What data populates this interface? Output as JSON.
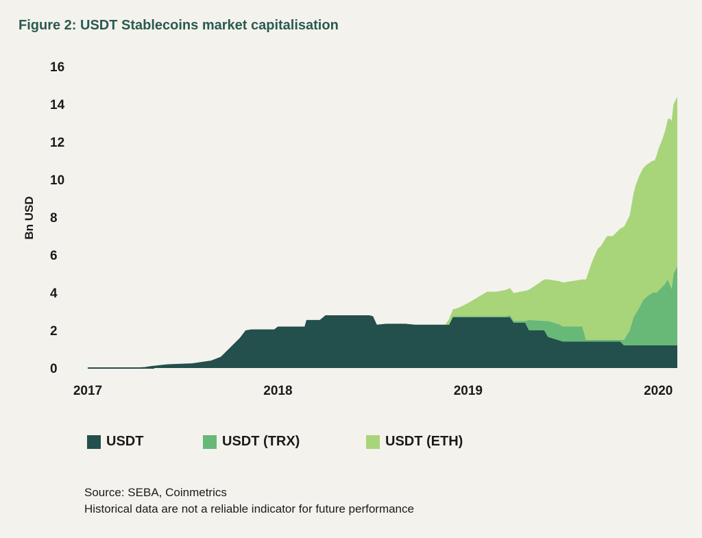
{
  "title": "Figure 2: USDT Stablecoins market capitalisation",
  "source_line1": "Source: SEBA, Coinmetrics",
  "source_line2": "Historical data are not a reliable indicator for future performance",
  "chart_data": {
    "type": "area",
    "stacked": true,
    "title": "Figure 2: USDT Stablecoins market capitalisation",
    "xlabel": "",
    "ylabel": "Bn USD",
    "ylim": [
      0,
      16
    ],
    "xlim": [
      2017.0,
      2020.1
    ],
    "yticks": [
      0,
      2,
      4,
      6,
      8,
      10,
      12,
      14,
      16
    ],
    "xticks": [
      "2017",
      "2018",
      "2019",
      "2020"
    ],
    "xtick_values": [
      2017.0,
      2018.0,
      2019.0,
      2020.0
    ],
    "grid": false,
    "legend_position": "bottom",
    "series": [
      {
        "name": "USDT",
        "color": "#234f4c",
        "x": [
          2017.0,
          2017.2,
          2017.3,
          2017.33,
          2017.42,
          2017.55,
          2017.65,
          2017.7,
          2017.73,
          2017.77,
          2017.8,
          2017.83,
          2017.86,
          2017.89,
          2017.98,
          2018.0,
          2018.14,
          2018.15,
          2018.22,
          2018.25,
          2018.48,
          2018.5,
          2018.52,
          2018.57,
          2018.67,
          2018.72,
          2018.9,
          2018.92,
          2019.22,
          2019.24,
          2019.3,
          2019.32,
          2019.4,
          2019.42,
          2019.5,
          2019.8,
          2019.82,
          2019.9,
          2020.1
        ],
        "values": [
          0.0,
          0.0,
          0.05,
          0.1,
          0.2,
          0.25,
          0.4,
          0.6,
          0.9,
          1.3,
          1.6,
          2.0,
          2.05,
          2.05,
          2.05,
          2.2,
          2.2,
          2.55,
          2.55,
          2.8,
          2.8,
          2.75,
          2.3,
          2.35,
          2.35,
          2.3,
          2.3,
          2.7,
          2.7,
          2.4,
          2.4,
          2.0,
          2.0,
          1.65,
          1.4,
          1.4,
          1.2,
          1.2,
          1.2
        ]
      },
      {
        "name": "USDT (TRX)",
        "color": "#68b878",
        "x": [
          2017.0,
          2018.9,
          2018.92,
          2019.2,
          2019.22,
          2019.3,
          2019.32,
          2019.4,
          2019.42,
          2019.48,
          2019.5,
          2019.6,
          2019.62,
          2019.8,
          2019.82,
          2019.85,
          2019.87,
          2019.9,
          2019.92,
          2019.94,
          2019.97,
          2019.99,
          2020.01,
          2020.03,
          2020.05,
          2020.07,
          2020.08,
          2020.1
        ],
        "values": [
          0.0,
          0.0,
          0.05,
          0.05,
          0.1,
          0.1,
          0.55,
          0.5,
          0.85,
          0.85,
          0.8,
          0.8,
          0.1,
          0.1,
          0.3,
          0.8,
          1.5,
          2.0,
          2.4,
          2.6,
          2.8,
          2.8,
          3.0,
          3.2,
          3.5,
          3.0,
          3.8,
          4.2
        ]
      },
      {
        "name": "USDT (ETH)",
        "color": "#a8d47a",
        "x": [
          2017.0,
          2018.88,
          2018.9,
          2018.95,
          2019.0,
          2019.05,
          2019.1,
          2019.15,
          2019.2,
          2019.3,
          2019.32,
          2019.4,
          2019.42,
          2019.6,
          2019.62,
          2019.65,
          2019.68,
          2019.7,
          2019.73,
          2019.76,
          2019.8,
          2019.82,
          2019.85,
          2019.88,
          2019.9,
          2019.95,
          2019.98,
          2020.0,
          2020.02,
          2020.04,
          2020.06,
          2020.08,
          2020.1
        ],
        "values": [
          0.0,
          0.0,
          0.3,
          0.45,
          0.7,
          1.0,
          1.3,
          1.3,
          1.4,
          1.6,
          1.6,
          2.2,
          2.2,
          2.5,
          3.2,
          4.1,
          4.8,
          5.0,
          5.5,
          5.5,
          5.9,
          6.0,
          6.1,
          6.8,
          7.0,
          7.0,
          7.0,
          7.5,
          7.8,
          8.2,
          8.8,
          9.0,
          9.0
        ]
      }
    ]
  }
}
